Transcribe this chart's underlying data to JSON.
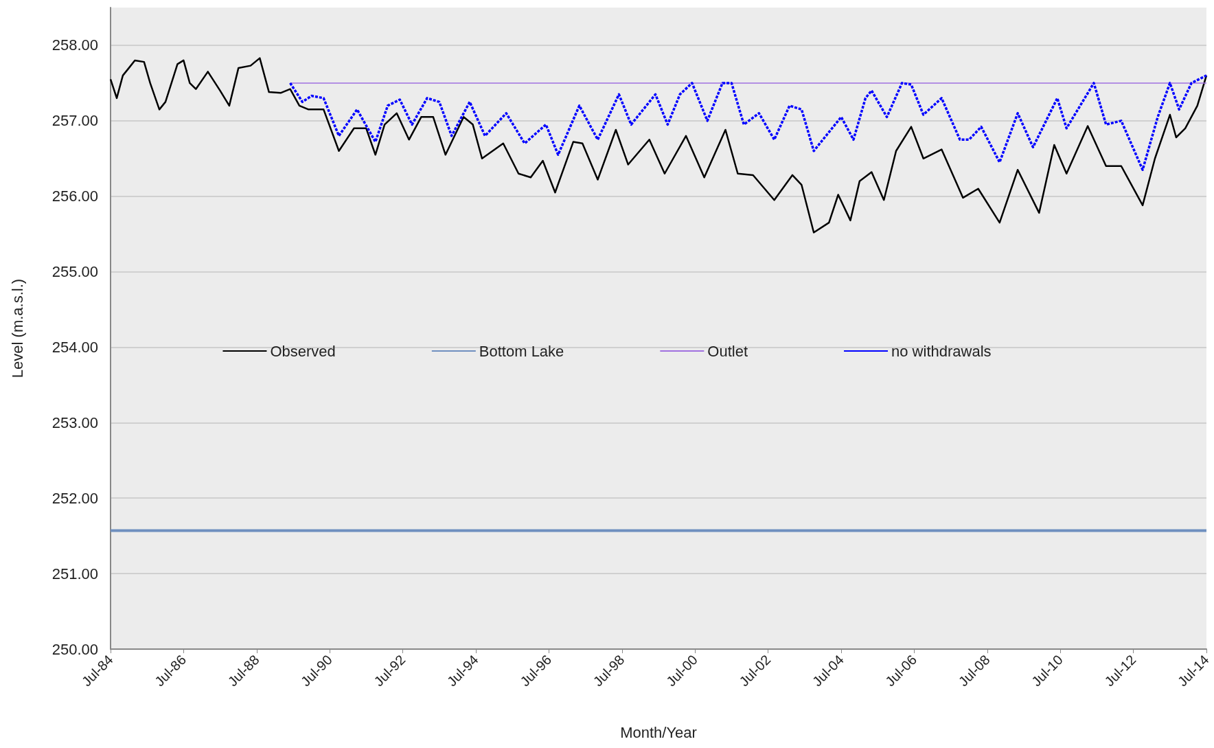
{
  "chart_data": {
    "type": "line",
    "xlabel": "Month/Year",
    "ylabel": "Level (m.a.s.l.)",
    "xlim": [
      "1984-07",
      "2014-07"
    ],
    "xticks": [
      {
        "value": "1984-07",
        "label": "Jul-84"
      },
      {
        "value": "1986-07",
        "label": "Jul-86"
      },
      {
        "value": "1988-07",
        "label": "Jul-88"
      },
      {
        "value": "1990-07",
        "label": "Jul-90"
      },
      {
        "value": "1992-07",
        "label": "Jul-92"
      },
      {
        "value": "1994-07",
        "label": "Jul-94"
      },
      {
        "value": "1996-07",
        "label": "Jul-96"
      },
      {
        "value": "1998-07",
        "label": "Jul-98"
      },
      {
        "value": "2000-07",
        "label": "Jul-00"
      },
      {
        "value": "2002-07",
        "label": "Jul-02"
      },
      {
        "value": "2004-07",
        "label": "Jul-04"
      },
      {
        "value": "2006-07",
        "label": "Jul-06"
      },
      {
        "value": "2008-07",
        "label": "Jul-08"
      },
      {
        "value": "2010-07",
        "label": "Jul-10"
      },
      {
        "value": "2012-07",
        "label": "Jul-12"
      },
      {
        "value": "2014-07",
        "label": "Jul-14"
      }
    ],
    "ylim": [
      250,
      258.5
    ],
    "yticks": [
      {
        "value": 250,
        "label": "250.00"
      },
      {
        "value": 251,
        "label": "251.00"
      },
      {
        "value": 252,
        "label": "252.00"
      },
      {
        "value": 253,
        "label": "253.00"
      },
      {
        "value": 254,
        "label": "254.00"
      },
      {
        "value": 255,
        "label": "255.00"
      },
      {
        "value": 256,
        "label": "256.00"
      },
      {
        "value": 257,
        "label": "257.00"
      },
      {
        "value": 258,
        "label": "258.00"
      }
    ],
    "grid": "y",
    "legend": "center",
    "marker": "none",
    "series": [
      {
        "name": "Observed",
        "color": "#000000",
        "line_style": "solid",
        "x": [
          "1984-07",
          "1984-09",
          "1984-11",
          "1985-01",
          "1985-03",
          "1985-06",
          "1985-08",
          "1985-11",
          "1986-01",
          "1986-05",
          "1986-07",
          "1986-09",
          "1986-11",
          "1987-03",
          "1987-07",
          "1987-10",
          "1988-01",
          "1988-05",
          "1988-08",
          "1988-11",
          "1989-03",
          "1989-06",
          "1989-09",
          "1989-12",
          "1990-05",
          "1990-10",
          "1991-03",
          "1991-07",
          "1991-10",
          "1992-01",
          "1992-05",
          "1992-09",
          "1993-01",
          "1993-05",
          "1993-09",
          "1994-03",
          "1994-06",
          "1994-09",
          "1995-04",
          "1995-09",
          "1996-01",
          "1996-05",
          "1996-09",
          "1997-03",
          "1997-06",
          "1997-11",
          "1998-05",
          "1998-09",
          "1999-04",
          "1999-09",
          "2000-04",
          "2000-10",
          "2001-05",
          "2001-09",
          "2002-02",
          "2002-09",
          "2003-03",
          "2003-06",
          "2003-10",
          "2004-03",
          "2004-06",
          "2004-10",
          "2005-01",
          "2005-05",
          "2005-09",
          "2006-01",
          "2006-06",
          "2006-10",
          "2007-04",
          "2007-11",
          "2008-04",
          "2008-11",
          "2009-05",
          "2009-12",
          "2010-05",
          "2010-09",
          "2011-04",
          "2011-10",
          "2012-03",
          "2012-10",
          "2013-02",
          "2013-07",
          "2013-09",
          "2013-12",
          "2014-04",
          "2014-07"
        ],
        "values": [
          257.55,
          257.3,
          257.6,
          257.7,
          257.8,
          257.78,
          257.5,
          257.15,
          257.25,
          257.75,
          257.8,
          257.5,
          257.42,
          257.65,
          257.4,
          257.2,
          257.7,
          257.73,
          257.83,
          257.38,
          257.37,
          257.42,
          257.2,
          257.15,
          257.15,
          256.6,
          256.9,
          256.9,
          256.55,
          256.95,
          257.1,
          256.75,
          257.05,
          257.05,
          256.55,
          257.05,
          256.95,
          256.5,
          256.7,
          256.3,
          256.25,
          256.47,
          256.05,
          256.72,
          256.7,
          256.22,
          256.88,
          256.42,
          256.75,
          256.3,
          256.8,
          256.25,
          256.88,
          256.3,
          256.28,
          255.95,
          256.28,
          256.15,
          255.52,
          255.65,
          256.02,
          255.68,
          256.2,
          256.32,
          255.95,
          256.6,
          256.92,
          256.5,
          256.62,
          255.98,
          256.1,
          255.65,
          256.35,
          255.78,
          256.68,
          256.3,
          256.93,
          256.4,
          256.4,
          255.88,
          256.5,
          257.08,
          256.78,
          256.9,
          257.2,
          257.6
        ]
      },
      {
        "name": "Bottom Lake",
        "color": "#6f8fbf",
        "line_style": "solid",
        "x": [
          "1984-07",
          "2014-07"
        ],
        "values": [
          251.57,
          251.57
        ]
      },
      {
        "name": "Outlet",
        "color": "#a070e0",
        "line_style": "solid",
        "x": [
          "1989-06",
          "2014-07"
        ],
        "values": [
          257.5,
          257.5
        ]
      },
      {
        "name": "no withdrawals",
        "color": "#0000ff",
        "line_style": "dashed",
        "x": [
          "1989-06",
          "1989-10",
          "1990-01",
          "1990-05",
          "1990-10",
          "1991-04",
          "1991-10",
          "1992-02",
          "1992-06",
          "1992-10",
          "1993-03",
          "1993-07",
          "1993-11",
          "1994-05",
          "1994-10",
          "1995-05",
          "1995-11",
          "1996-06",
          "1996-10",
          "1997-05",
          "1997-11",
          "1998-06",
          "1998-10",
          "1999-06",
          "1999-10",
          "2000-02",
          "2000-06",
          "2000-11",
          "2001-04",
          "2001-07",
          "2001-11",
          "2002-04",
          "2002-09",
          "2003-02",
          "2003-06",
          "2003-10",
          "2004-07",
          "2004-11",
          "2005-03",
          "2005-05",
          "2005-10",
          "2006-03",
          "2006-06",
          "2006-10",
          "2007-04",
          "2007-10",
          "2008-01",
          "2008-05",
          "2008-11",
          "2009-05",
          "2009-10",
          "2010-06",
          "2010-09",
          "2011-06",
          "2011-10",
          "2012-03",
          "2012-10",
          "2013-03",
          "2013-07",
          "2013-10",
          "2014-02",
          "2014-07"
        ],
        "values": [
          257.5,
          257.25,
          257.33,
          257.3,
          256.8,
          257.15,
          256.72,
          257.2,
          257.28,
          256.95,
          257.3,
          257.25,
          256.8,
          257.25,
          256.8,
          257.1,
          256.7,
          256.95,
          256.55,
          257.2,
          256.75,
          257.35,
          256.95,
          257.35,
          256.95,
          257.35,
          257.5,
          257.0,
          257.5,
          257.5,
          256.95,
          257.1,
          256.75,
          257.2,
          257.15,
          256.6,
          257.05,
          256.75,
          257.3,
          257.4,
          257.05,
          257.5,
          257.48,
          257.08,
          257.3,
          256.75,
          256.75,
          256.92,
          256.45,
          257.1,
          256.65,
          257.3,
          256.9,
          257.5,
          256.95,
          257.0,
          256.35,
          257.05,
          257.5,
          257.15,
          257.5,
          257.6
        ]
      }
    ]
  }
}
